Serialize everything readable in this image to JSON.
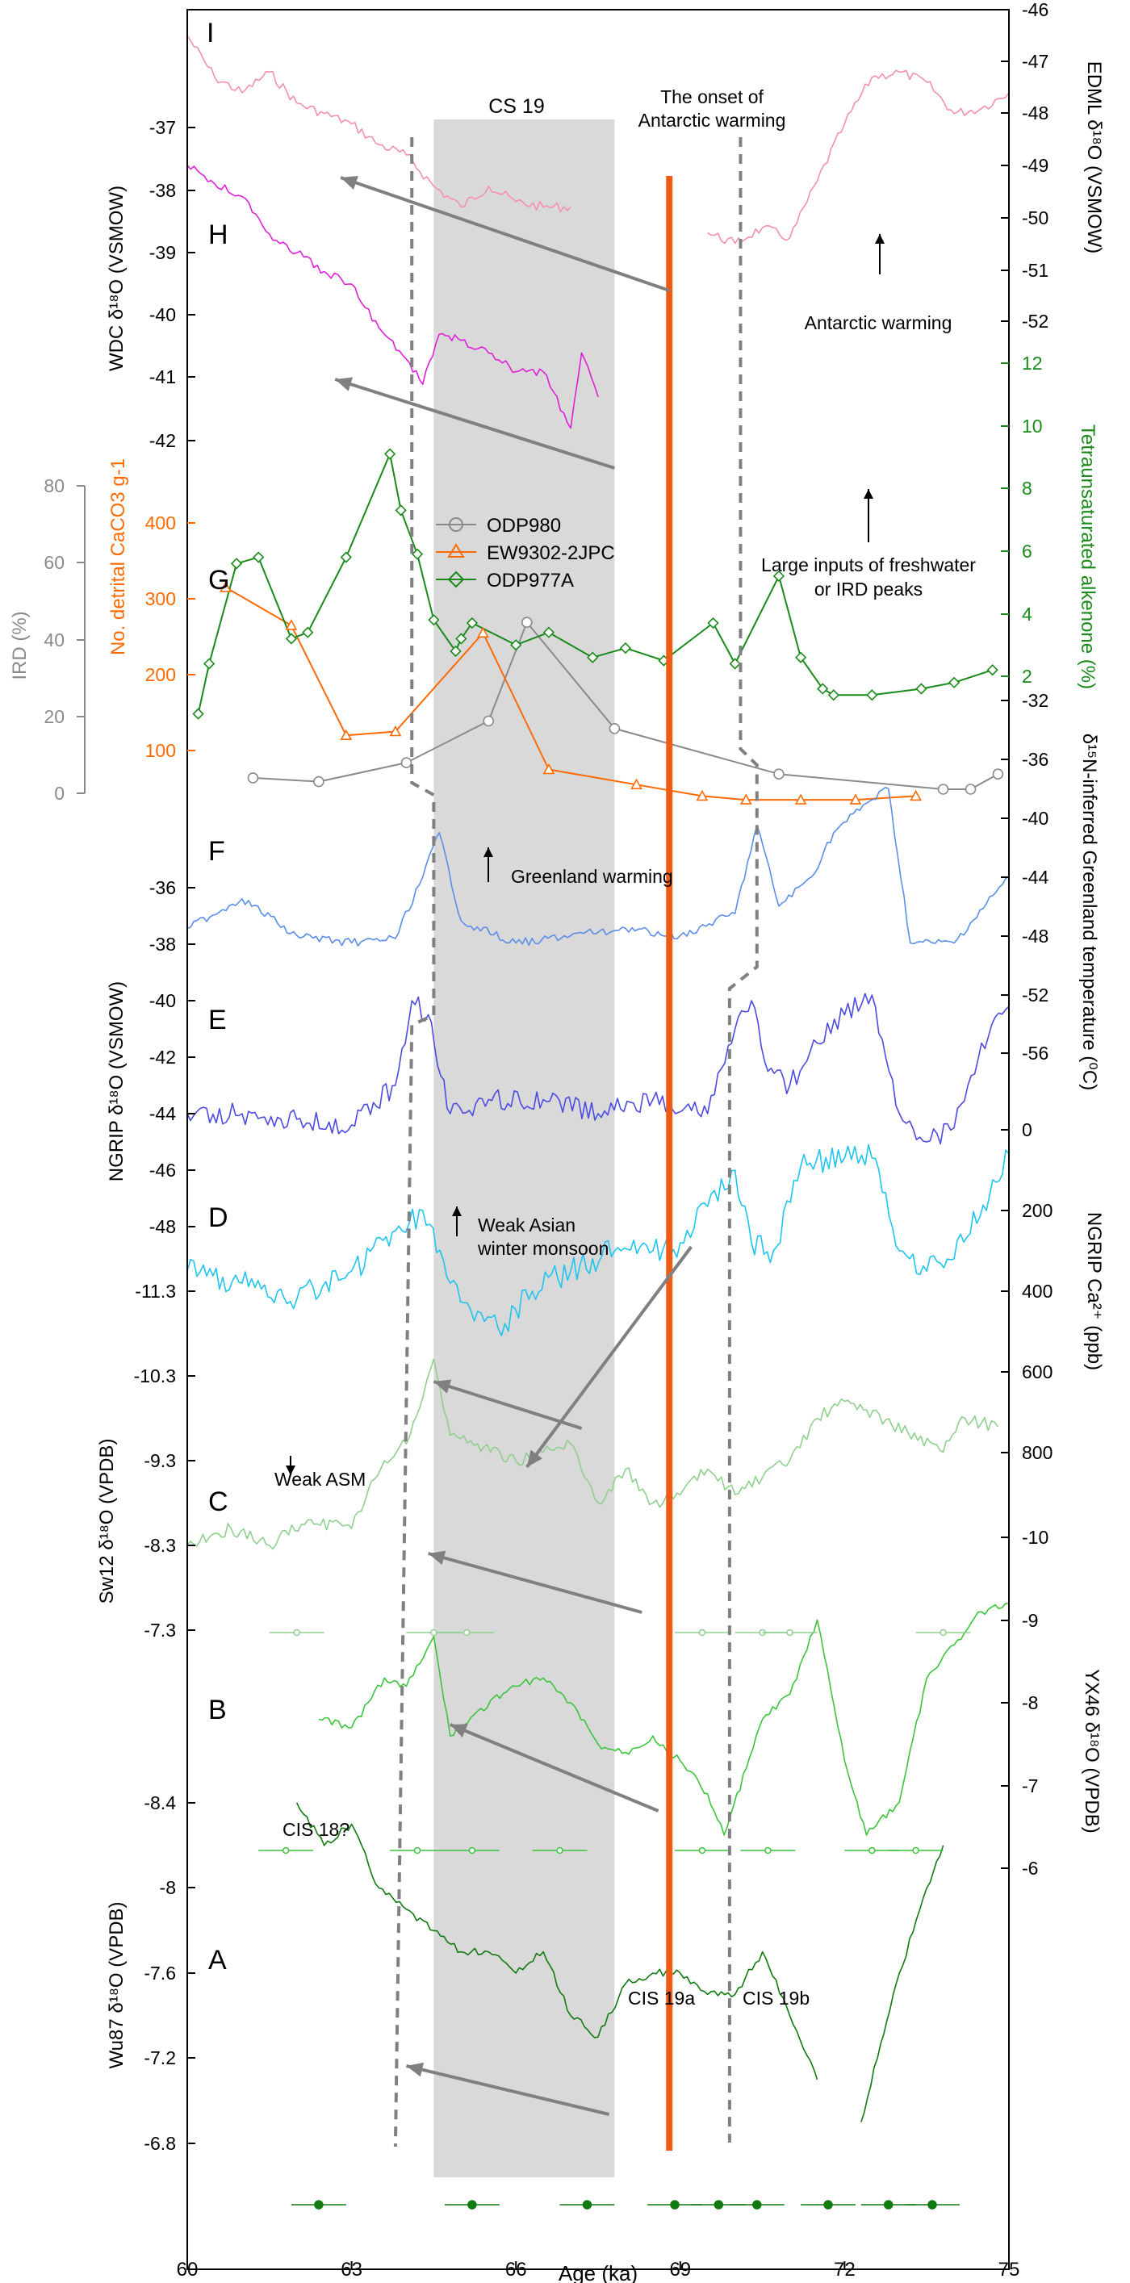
{
  "chart_data": {
    "type": "line",
    "xlabel": "Age (ka)",
    "xlim": [
      60,
      75
    ],
    "xticks": [
      "60",
      "63",
      "66",
      "69",
      "72",
      "75"
    ],
    "highlight": {
      "label": "CS 19",
      "x": [
        64.5,
        67.8
      ]
    },
    "onset_line_x": 68.8,
    "colors": {
      "edml": "#f48fb4",
      "wdc": "#e020d8",
      "ird": "#8a8a8a",
      "caco3": "#ff6a00",
      "alkenone": "#1a8a1a",
      "n15": "#5a8ee8",
      "ngrip_o": "#4b4be0",
      "ngrip_ca": "#1ec4f0",
      "sw12": "#8fd08f",
      "yx46": "#3cc43c",
      "wu87": "#117a11",
      "onset": "#f05a14",
      "shade": "#d9d9d9",
      "arrow": "#808080",
      "dashed": "#808080"
    },
    "panel_letters": [
      "I",
      "H",
      "G",
      "F",
      "E",
      "D",
      "C",
      "B",
      "A"
    ],
    "axes": [
      {
        "id": "edml",
        "label": "EDML δ¹⁸O (VSMOW)",
        "side": "right",
        "ticks": [
          "-46",
          "-47",
          "-48",
          "-49",
          "-50",
          "-51",
          "-52"
        ]
      },
      {
        "id": "wdc",
        "label": "WDC δ¹⁸O (VSMOW)",
        "side": "left",
        "ticks": [
          "-37",
          "-38",
          "-39",
          "-40",
          "-41",
          "-42"
        ]
      },
      {
        "id": "alkenone",
        "label": "Tetraunsaturated alkenone (%)",
        "side": "right",
        "ticks": [
          "12",
          "10",
          "8",
          "6",
          "4",
          "2"
        ]
      },
      {
        "id": "ird",
        "label": "IRD (%)",
        "side": "left",
        "ticks": [
          "80",
          "60",
          "40",
          "20",
          "0"
        ]
      },
      {
        "id": "caco3",
        "label": "No. detrital CaCO3 g-1",
        "side": "left",
        "ticks": [
          "400",
          "300",
          "200",
          "100"
        ]
      },
      {
        "id": "n15",
        "label": "δ¹⁵N-inferred Greenland temperature (⁰C)",
        "side": "right",
        "ticks": [
          "-32",
          "-36",
          "-40",
          "-44",
          "-48",
          "-52",
          "-56"
        ]
      },
      {
        "id": "ngrip_o",
        "label": "NGRIP δ¹⁸O (VSMOW)",
        "side": "left",
        "ticks": [
          "-36",
          "-38",
          "-40",
          "-42",
          "-44",
          "-46",
          "-48"
        ]
      },
      {
        "id": "ngrip_ca",
        "label": "NGRIP Ca²⁺ (ppb)",
        "side": "right",
        "ticks": [
          "0",
          "200",
          "400",
          "600",
          "800"
        ]
      },
      {
        "id": "sw12",
        "label": "Sw12 δ¹⁸O (VPDB)",
        "side": "left",
        "ticks": [
          "-11.3",
          "-10.3",
          "-9.3",
          "-8.3",
          "-7.3"
        ]
      },
      {
        "id": "yx46",
        "label": "YX46 δ¹⁸O (VPDB)",
        "side": "right",
        "ticks": [
          "-10",
          "-9",
          "-8",
          "-7",
          "-6"
        ]
      },
      {
        "id": "wu87",
        "label": "Wu87 δ¹⁸O (VPDB)",
        "side": "left",
        "ticks": [
          "-8.4",
          "-8",
          "-7.6",
          "-7.2",
          "-6.8"
        ]
      }
    ],
    "legend": [
      "ODP980",
      "EW9302-2JPC",
      "ODP977A"
    ],
    "annotations": [
      "The onset of Antarctic warming",
      "Antarctic warming",
      "Large inputs of freshwater or IRD peaks",
      "Greenland warming",
      "Weak Asian winter monsoon",
      "Weak ASM",
      "CIS 18?",
      "CIS 19a",
      "CIS 19b"
    ],
    "series": [
      {
        "id": "edml",
        "name": "",
        "x": [
          60,
          60.5,
          61,
          61.5,
          62,
          62.5,
          63,
          63.5,
          64,
          64.5,
          65,
          65.5,
          66,
          66.5,
          67,
          67.5,
          68,
          68.5,
          69,
          69.5,
          70,
          70.5,
          71,
          71.5,
          72,
          72.5,
          73,
          73.5,
          74,
          74.5,
          75
        ],
        "y": [
          -46.5,
          -47.3,
          -47.6,
          -47.2,
          -47.8,
          -48,
          -48.2,
          -48.6,
          -48.8,
          -49.4,
          -49.8,
          -49.4,
          -49.7,
          -49.8,
          -49.8,
          null,
          null,
          null,
          null,
          -50.3,
          -50.5,
          -50.2,
          -50.4,
          -49.3,
          -48.2,
          -47.3,
          -47.2,
          -47.4,
          -48,
          -47.9,
          -47.6
        ]
      },
      {
        "id": "wdc",
        "name": "",
        "x": [
          60,
          60.5,
          61,
          61.5,
          62,
          62.5,
          63,
          63.5,
          64,
          64.3,
          64.6,
          65,
          65.5,
          66,
          66.5,
          67,
          67.2,
          67.5
        ],
        "y": [
          -37.6,
          -37.9,
          -38.1,
          -38.7,
          -39,
          -39.3,
          -39.5,
          -40.2,
          -40.7,
          -41.1,
          -40.3,
          -40.4,
          -40.6,
          -40.9,
          -40.9,
          -41.8,
          -40.6,
          -41.3
        ]
      },
      {
        "id": "ird",
        "name": "ODP980",
        "x": [
          61.2,
          62.4,
          64,
          65.5,
          66.2,
          67.8,
          70.8,
          73.8,
          74.3,
          74.8
        ],
        "y": [
          3,
          2,
          7,
          18,
          44,
          16,
          4,
          0,
          0,
          4
        ]
      },
      {
        "id": "caco3",
        "name": "EW9302-2JPC",
        "x": [
          60.7,
          61.9,
          62.9,
          63.8,
          65.4,
          66.6,
          68.2,
          69.4,
          70.2,
          71.2,
          72.2,
          73.3
        ],
        "y": [
          315,
          265,
          120,
          125,
          255,
          75,
          55,
          40,
          35,
          35,
          35,
          40
        ]
      },
      {
        "id": "alkenone",
        "name": "ODP977A",
        "x": [
          60.2,
          60.4,
          60.9,
          61.3,
          61.9,
          62.2,
          62.9,
          63.7,
          63.9,
          64.2,
          64.5,
          64.9,
          65,
          65.2,
          66.0,
          66.6,
          67.4,
          68.0,
          68.7,
          69.6,
          70,
          70.8,
          71.2,
          71.6,
          71.8,
          72.5,
          73.4,
          74,
          74.7
        ],
        "y": [
          0.8,
          2.4,
          5.6,
          5.8,
          3.2,
          3.4,
          5.8,
          9.1,
          7.3,
          5.9,
          3.8,
          2.8,
          3.2,
          3.7,
          3.0,
          3.4,
          2.6,
          2.9,
          2.5,
          3.7,
          2.4,
          5.2,
          2.6,
          1.6,
          1.4,
          1.4,
          1.6,
          1.8,
          2.2
        ]
      },
      {
        "id": "n15",
        "name": "",
        "x": [
          60,
          61,
          62,
          63,
          63.8,
          64.3,
          64.6,
          65,
          66,
          67,
          68,
          69,
          70,
          70.4,
          70.8,
          71.4,
          71.8,
          72.4,
          72.8,
          73.2,
          74,
          75
        ],
        "y": [
          -47.5,
          -45.5,
          -48,
          -48.5,
          -48.2,
          -44,
          -41,
          -47,
          -48.5,
          -48,
          -47.5,
          -48,
          -46.5,
          -40.5,
          -46,
          -44,
          -41,
          -39,
          -38,
          -48.5,
          -48.5,
          -44
        ]
      },
      {
        "id": "ngrip_o",
        "name": "",
        "x": [
          60,
          61,
          62,
          63,
          63.8,
          64.1,
          64.4,
          64.8,
          65.5,
          66.5,
          67.5,
          68.5,
          69.5,
          70,
          70.3,
          70.6,
          71,
          71.5,
          72,
          72.5,
          73,
          73.5,
          74,
          74.5,
          75
        ],
        "y": [
          -44,
          -44,
          -44.2,
          -44.4,
          -43,
          -40,
          -40.5,
          -44,
          -43.5,
          -43.5,
          -44,
          -43.5,
          -44,
          -41,
          -40,
          -42.5,
          -43,
          -41.5,
          -40.5,
          -39.8,
          -44,
          -45,
          -44.5,
          -41.5,
          -40.2
        ]
      },
      {
        "id": "ngrip_ca",
        "name": "",
        "x": [
          60,
          61,
          62,
          63,
          63.8,
          64.3,
          64.8,
          65.3,
          65.8,
          66.3,
          67,
          67.8,
          68.5,
          69,
          69.5,
          70,
          70.3,
          70.7,
          71.2,
          72,
          72.5,
          73,
          73.5,
          74,
          75
        ],
        "y": [
          350,
          380,
          420,
          350,
          250,
          200,
          380,
          450,
          480,
          400,
          350,
          300,
          300,
          280,
          190,
          100,
          280,
          300,
          90,
          70,
          70,
          300,
          350,
          320,
          60
        ]
      },
      {
        "id": "sw12",
        "name": "",
        "x": [
          60,
          60.8,
          61.5,
          62.2,
          63,
          63.6,
          64,
          64.5,
          64.8,
          65.3,
          66,
          66.5,
          67,
          67.5,
          68,
          68.5,
          69,
          69.5,
          70,
          70.5,
          71,
          71.5,
          72,
          72.4,
          73.8,
          74.2,
          74.8
        ],
        "y": [
          -8.3,
          -8.5,
          -8.3,
          -8.6,
          -8.5,
          -9.3,
          -9.5,
          -10.5,
          -9.6,
          -9.5,
          -9.3,
          -9.4,
          -9.5,
          -8.8,
          -9.2,
          -8.8,
          -8.9,
          -9.2,
          -8.9,
          -9.1,
          -9.3,
          -9.8,
          -10.0,
          -9.9,
          -9.4,
          -9.8,
          -9.7
        ]
      },
      {
        "id": "yx46",
        "name": "",
        "x": [
          62.4,
          63,
          63.6,
          64,
          64.5,
          64.8,
          65.3,
          66,
          66.5,
          67,
          67.5,
          68,
          68.5,
          69,
          69.5,
          69.8,
          70.5,
          71,
          71.5,
          72,
          72.4,
          73,
          73.5,
          74,
          74.5,
          75
        ],
        "y": [
          -7.8,
          -7.7,
          -8.3,
          -8.2,
          -8.8,
          -7.6,
          -7.9,
          -8.2,
          -8.3,
          -8,
          -7.5,
          -7.4,
          -7.6,
          -7.3,
          -6.9,
          -6.4,
          -7.8,
          -8.1,
          -9.0,
          -7.3,
          -6.4,
          -6.8,
          -8.3,
          -8.7,
          -9.1,
          -9.2
        ]
      },
      {
        "id": "wu87",
        "name": "",
        "x": [
          62,
          62.5,
          63,
          63.5,
          64,
          64.5,
          65,
          65.5,
          66,
          66.5,
          67,
          67.5,
          68,
          68.5,
          69,
          69.5,
          70,
          70.5,
          71,
          71.5,
          72,
          72.3,
          72.6,
          73,
          73.5,
          73.8
        ],
        "y": [
          -8.4,
          -8.2,
          -8.3,
          -8.0,
          -7.9,
          -7.8,
          -7.7,
          -7.7,
          -7.6,
          -7.7,
          -7.4,
          -7.3,
          -7.55,
          -7.6,
          -7.6,
          -7.5,
          -7.5,
          -7.7,
          -7.4,
          -7.1,
          null,
          -6.9,
          -7.2,
          -7.6,
          -8.0,
          -8.2
        ]
      }
    ]
  }
}
